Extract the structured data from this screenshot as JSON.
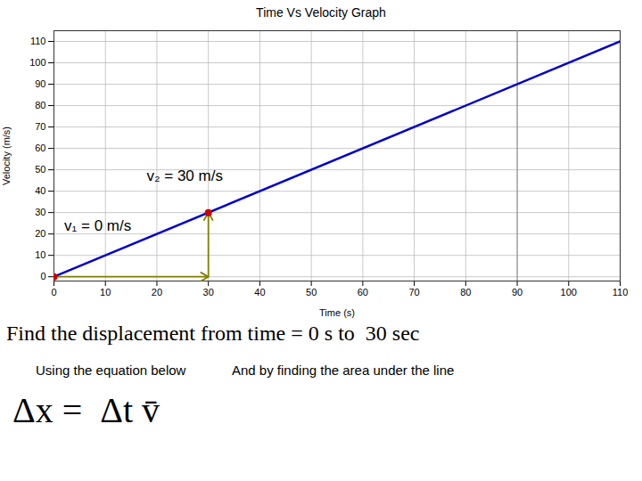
{
  "chart_data": {
    "type": "line",
    "title": "Time Vs Velocity Graph",
    "xlabel": "Time (s)",
    "ylabel": "Velocity (m/s)",
    "xlim": [
      0,
      110
    ],
    "ylim": [
      -2,
      115
    ],
    "xticks": [
      0,
      10,
      20,
      30,
      40,
      50,
      60,
      70,
      80,
      90,
      100,
      110
    ],
    "yticks": [
      0,
      10,
      20,
      30,
      40,
      50,
      60,
      70,
      80,
      90,
      100,
      110
    ],
    "grid": true,
    "x": [
      0,
      110
    ],
    "values": [
      0,
      110
    ],
    "color": "#0000CC",
    "points": {
      "x": [
        0,
        30
      ],
      "y": [
        0,
        30
      ],
      "color": "#CC0000"
    },
    "vlines": [
      {
        "x": 90,
        "color": "#888888"
      }
    ],
    "arrows": [
      {
        "x1": 0,
        "y1": 0,
        "x2": 30,
        "y2": 0
      },
      {
        "x1": 30,
        "y1": 0,
        "x2": 30,
        "y2": 30
      }
    ],
    "arrow_color": "#808000",
    "annotations": [
      {
        "text": "v₂ = 30 m/s",
        "x": 18,
        "y": 47
      },
      {
        "text": "v₁ = 0 m/s",
        "x": 2,
        "y": 24
      }
    ],
    "texts": [
      "Find the displacement from time = 0 s to  30 sec",
      "Using the equation below",
      "And by finding the area under the line",
      "Δx =  Δt v̄"
    ]
  }
}
